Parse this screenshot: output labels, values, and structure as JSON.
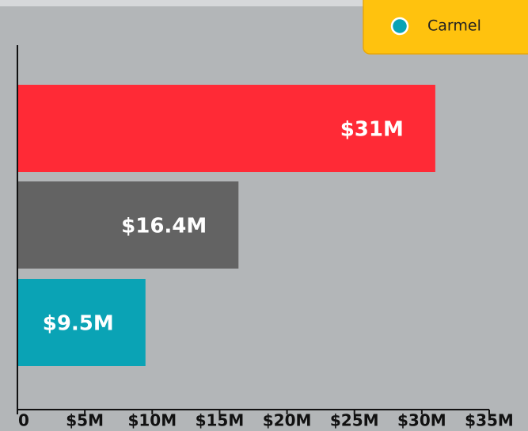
{
  "chart_data": {
    "type": "hbar",
    "categories": [
      null,
      null,
      null
    ],
    "values": [
      31,
      16.4,
      9.5
    ],
    "value_labels": [
      "$31M",
      "$16.4M",
      "$9.5M"
    ],
    "colors": [
      "#ff2a36",
      "#636363",
      "#0aa3b5"
    ],
    "xlim": [
      0,
      35
    ],
    "xticks": [
      0,
      {
        "value": 5,
        "label": "$5M"
      },
      {
        "value": 10,
        "label": "$10M"
      },
      {
        "value": 15,
        "label": "$15M"
      },
      {
        "value": 20,
        "label": "$20M"
      },
      {
        "value": 25,
        "label": "$25M"
      },
      {
        "value": 30,
        "label": "$30M"
      },
      {
        "value": 35,
        "label": "$35M"
      }
    ],
    "legend": {
      "position": "top-right",
      "entries": [
        {
          "name": "Carmel",
          "color": "#0aa3b5"
        }
      ]
    }
  }
}
